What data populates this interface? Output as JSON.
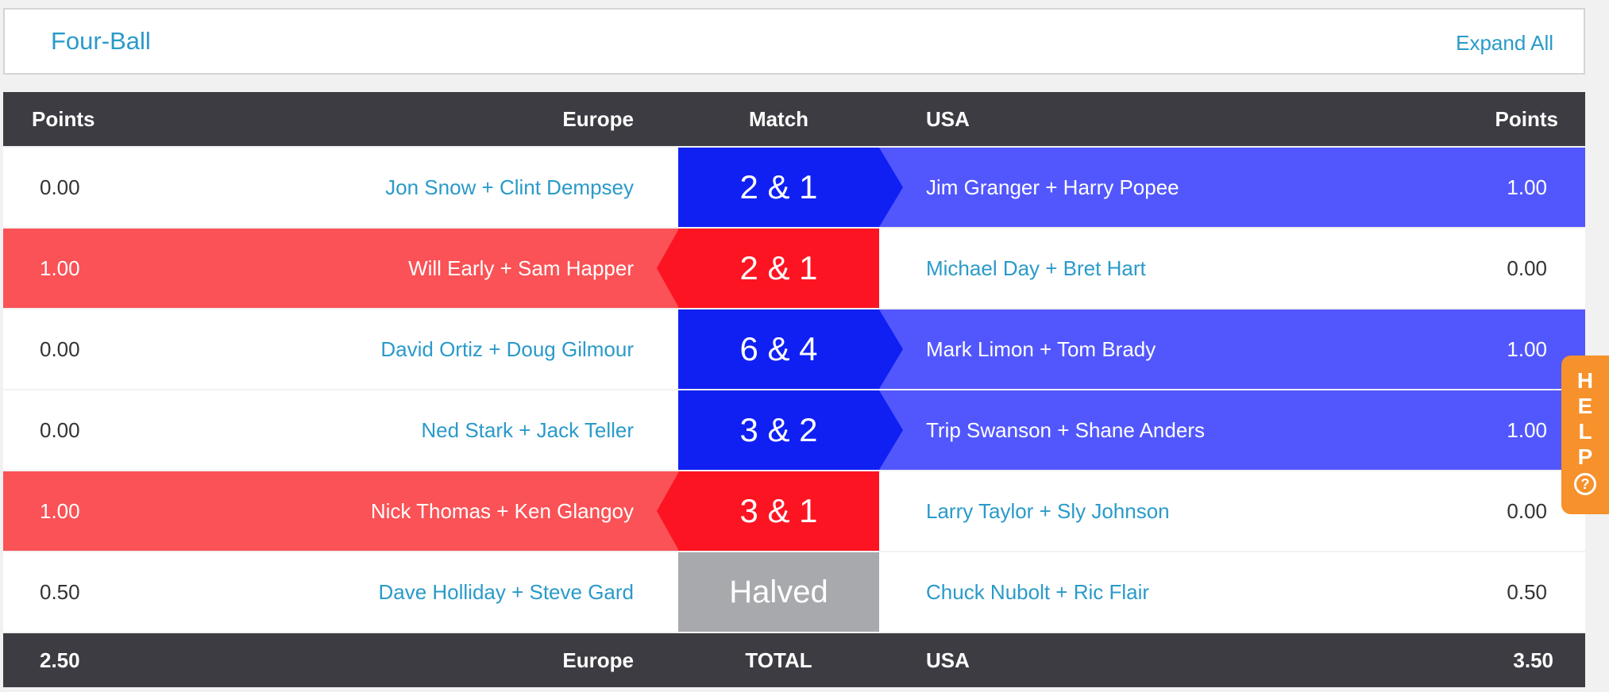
{
  "header": {
    "title": "Four-Ball",
    "expand_all": "Expand All"
  },
  "columns": {
    "left_points": "Points",
    "europe": "Europe",
    "match": "Match",
    "usa": "USA",
    "right_points": "Points"
  },
  "rows": [
    {
      "eu_points": "0.00",
      "eu_team": "Jon Snow + Clint Dempsey",
      "result": "2 & 1",
      "winner": "usa",
      "usa_team": "Jim Granger + Harry Popee",
      "usa_points": "1.00"
    },
    {
      "eu_points": "1.00",
      "eu_team": "Will Early + Sam Happer",
      "result": "2 & 1",
      "winner": "eu",
      "usa_team": "Michael Day + Bret Hart",
      "usa_points": "0.00"
    },
    {
      "eu_points": "0.00",
      "eu_team": "David Ortiz + Doug Gilmour",
      "result": "6 & 4",
      "winner": "usa",
      "usa_team": "Mark Limon + Tom Brady",
      "usa_points": "1.00"
    },
    {
      "eu_points": "0.00",
      "eu_team": "Ned Stark + Jack Teller",
      "result": "3 & 2",
      "winner": "usa",
      "usa_team": "Trip Swanson + Shane Anders",
      "usa_points": "1.00"
    },
    {
      "eu_points": "1.00",
      "eu_team": "Nick Thomas + Ken Glangoy",
      "result": "3 & 1",
      "winner": "eu",
      "usa_team": "Larry Taylor + Sly Johnson",
      "usa_points": "0.00"
    },
    {
      "eu_points": "0.50",
      "eu_team": "Dave Holliday + Steve Gard",
      "result": "Halved",
      "winner": "halved",
      "usa_team": "Chuck Nubolt + Ric Flair",
      "usa_points": "0.50"
    }
  ],
  "totals": {
    "eu_points": "2.50",
    "europe": "Europe",
    "label": "TOTAL",
    "usa": "USA",
    "usa_points": "3.50"
  },
  "help": {
    "letters": [
      "H",
      "E",
      "L",
      "P"
    ],
    "icon": "question-circle-icon",
    "icon_glyph": "?"
  },
  "colors": {
    "europe_win_band": "#fa5256",
    "europe_win_box": "#fd1422",
    "usa_win_band": "#5257fd",
    "usa_win_box": "#1020f3",
    "halved_box": "#a8a9ad",
    "link": "#2a9ac9",
    "header_bar": "#3d3c42",
    "help_tab": "#f6912b"
  }
}
